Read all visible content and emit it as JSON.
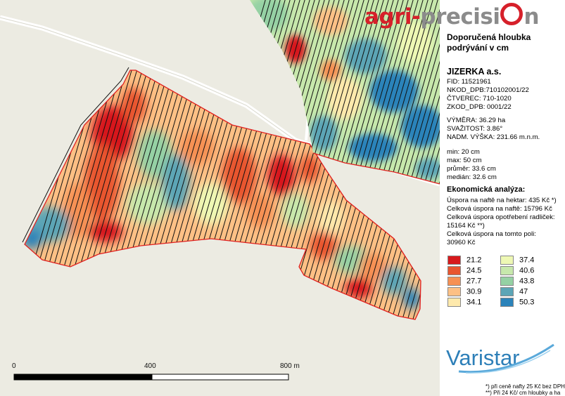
{
  "header": {
    "brand_part1": "agri-",
    "brand_part2": "precisi",
    "brand_part3": "n"
  },
  "map_title": "Doporučená hloubka podrývání v cm",
  "farm": {
    "name": "JIZERKA a.s.",
    "fid": "FID: 11521961",
    "nkod": "NKOD_DPB:710102001/22",
    "ctverec": "ČTVEREC: 710-1020",
    "zkod": "ZKOD_DPB: 0001/22"
  },
  "field": {
    "vymera": "VÝMĚRA: 36.29 ha",
    "svazitost": "SVAŽITOST: 3.86°",
    "vyska": "NADM. VÝŠKA: 231.66 m.n.m."
  },
  "stats": {
    "min": "min: 20 cm",
    "max": "max: 50 cm",
    "prumer": "průměr: 33.6 cm",
    "median": "medián: 32.6 cm"
  },
  "economy": {
    "title": "Ekonomická analýza:",
    "line1": "Úspora na naftě na hektar: 435 Kč *)",
    "line2": "Celková úspora na naftě: 15796 Kč",
    "line3": "Celková úspora opotřebení radliček:",
    "line4": "15164 Kč **)",
    "line5": "Celková úspora na tomto poli:",
    "line6": "30960 Kč"
  },
  "legend": [
    {
      "label": "21.2",
      "color": "#d7191c"
    },
    {
      "label": "24.5",
      "color": "#e8552f"
    },
    {
      "label": "27.7",
      "color": "#f69053"
    },
    {
      "label": "30.9",
      "color": "#fdc085"
    },
    {
      "label": "34.1",
      "color": "#fee9ac"
    },
    {
      "label": "37.4",
      "color": "#eef8b4"
    },
    {
      "label": "40.6",
      "color": "#c7e8ac"
    },
    {
      "label": "43.8",
      "color": "#95d1a4"
    },
    {
      "label": "47",
      "color": "#5ca5b6"
    },
    {
      "label": "50.3",
      "color": "#2b83ba"
    }
  ],
  "scale": {
    "label0": "0",
    "label1": "400",
    "label2": "800 m"
  },
  "varistar": "Varistar",
  "footnotes": {
    "f1": "*) při ceně nafty 25 Kč bez DPH",
    "f2": "**) Při 24 Kč/ cm hloubky a ha"
  },
  "colors": {
    "background": "#ecebe2",
    "road": "#ffffff",
    "boundary": "#e0201f",
    "track": "#111111",
    "brand_red": "#d6202a",
    "brand_grey": "#8b8b8b",
    "varistar_blue": "#2d7fb8"
  }
}
